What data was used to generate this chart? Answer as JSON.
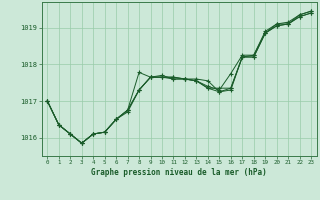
{
  "title": "Graphe pression niveau de la mer (hPa)",
  "background_color": "#cce8d8",
  "grid_color": "#99ccaa",
  "line_color": "#1a5c2a",
  "marker_color": "#1a5c2a",
  "xlim": [
    -0.5,
    23.5
  ],
  "ylim": [
    1015.5,
    1019.7
  ],
  "xticks": [
    0,
    1,
    2,
    3,
    4,
    5,
    6,
    7,
    8,
    9,
    10,
    11,
    12,
    13,
    14,
    15,
    16,
    17,
    18,
    19,
    20,
    21,
    22,
    23
  ],
  "yticks": [
    1016,
    1017,
    1018,
    1019
  ],
  "series": [
    [
      1017.0,
      1016.35,
      1016.1,
      1015.85,
      1016.1,
      1016.15,
      1016.5,
      1016.75,
      1017.78,
      1017.65,
      1017.7,
      1017.6,
      1017.6,
      1017.55,
      1017.4,
      1017.3,
      1017.75,
      1018.25,
      1018.25,
      1018.9,
      1019.1,
      1019.15,
      1019.35,
      1019.45
    ],
    [
      1017.0,
      1016.35,
      1016.1,
      1015.85,
      1016.1,
      1016.15,
      1016.5,
      1016.7,
      1017.3,
      1017.65,
      1017.65,
      1017.65,
      1017.6,
      1017.55,
      1017.35,
      1017.35,
      1017.35,
      1018.2,
      1018.2,
      1018.85,
      1019.05,
      1019.1,
      1019.3,
      1019.4
    ],
    [
      1017.0,
      1016.35,
      1016.1,
      1015.85,
      1016.1,
      1016.15,
      1016.5,
      1016.75,
      1017.3,
      1017.65,
      1017.65,
      1017.6,
      1017.6,
      1017.6,
      1017.55,
      1017.25,
      1017.3,
      1018.2,
      1018.2,
      1018.85,
      1019.05,
      1019.1,
      1019.3,
      1019.4
    ],
    [
      1017.0,
      1016.35,
      1016.1,
      1015.85,
      1016.1,
      1016.15,
      1016.5,
      1016.75,
      1017.3,
      1017.65,
      1017.65,
      1017.65,
      1017.6,
      1017.55,
      1017.35,
      1017.25,
      1017.35,
      1018.2,
      1018.25,
      1018.85,
      1019.1,
      1019.1,
      1019.35,
      1019.45
    ]
  ]
}
